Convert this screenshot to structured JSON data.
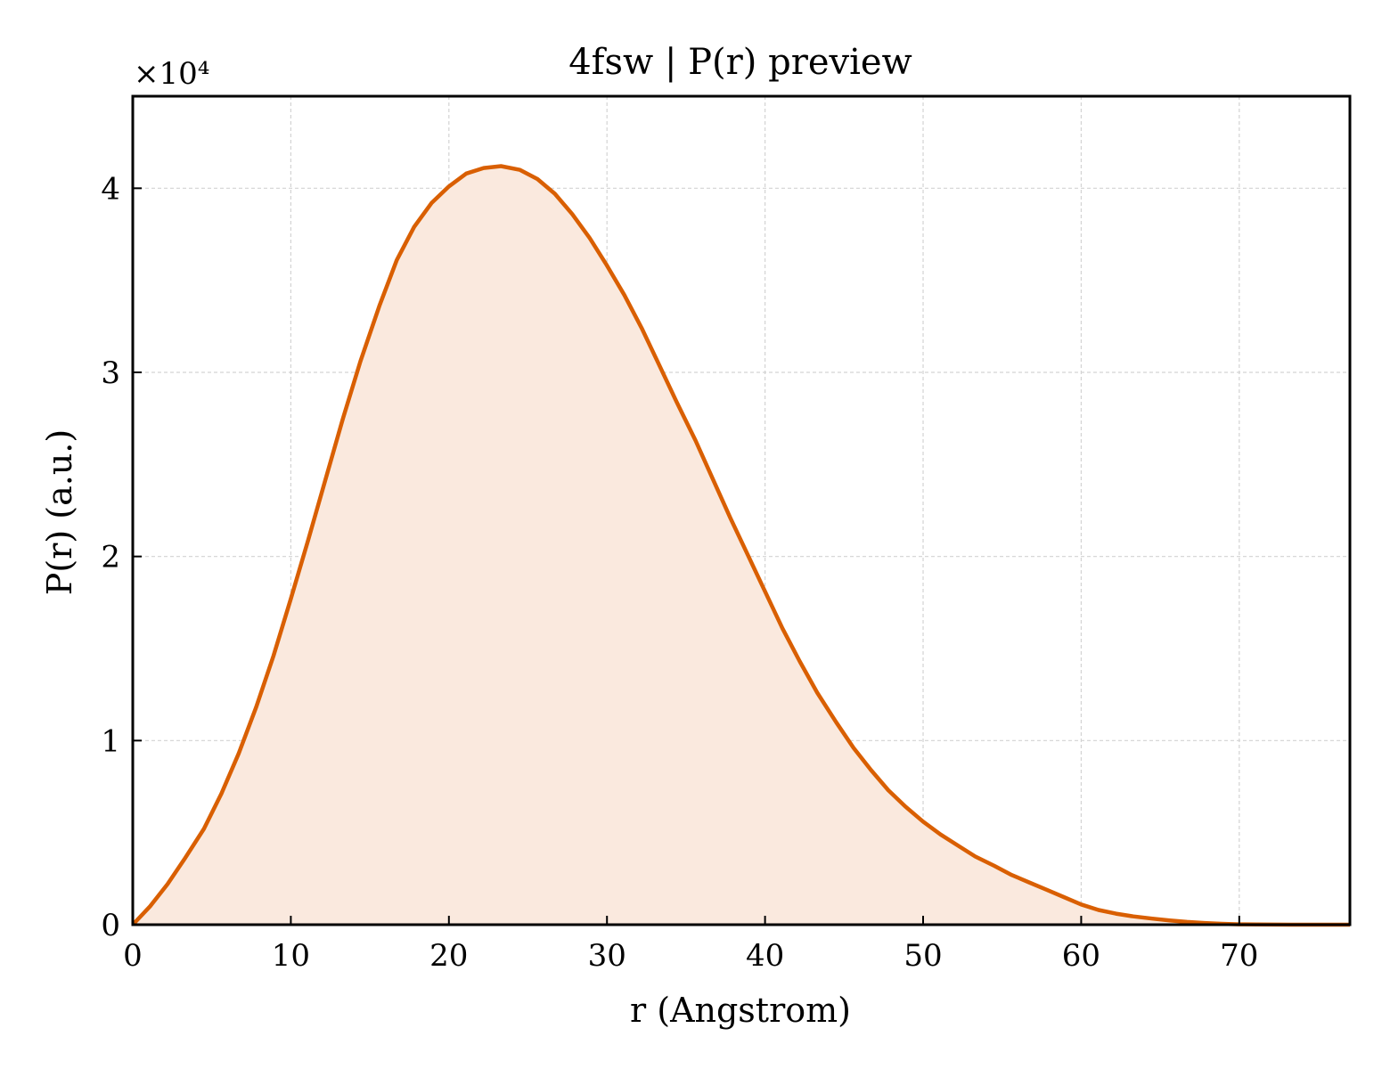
{
  "chart_data": {
    "type": "area",
    "title": "4fsw | P(r) preview",
    "xlabel": "r (Angstrom)",
    "ylabel": "P(r) (a.u.)",
    "y_multiplier_label": "×10⁴",
    "y_scale_factor": 10000,
    "xlim": [
      0,
      77
    ],
    "ylim": [
      0,
      45000
    ],
    "x_ticks": [
      0,
      10,
      20,
      30,
      40,
      50,
      60,
      70
    ],
    "y_ticks": [
      0,
      10000,
      20000,
      30000,
      40000
    ],
    "x_tick_labels": [
      "0",
      "10",
      "20",
      "30",
      "40",
      "50",
      "60",
      "70"
    ],
    "y_tick_labels": [
      "0",
      "1",
      "2",
      "3",
      "4"
    ],
    "grid": true,
    "legend": false,
    "colors": {
      "line": "#d95f02",
      "fill": "#fae9de",
      "grid": "#d3d3d3",
      "axis": "#000000"
    },
    "series": [
      {
        "x": [
          0,
          1.1,
          2.2,
          3.3,
          4.5,
          5.6,
          6.7,
          7.8,
          8.9,
          10,
          11.1,
          12.2,
          13.3,
          14.4,
          15.6,
          16.7,
          17.8,
          18.9,
          20,
          21.1,
          22.2,
          23.3,
          24.5,
          25.6,
          26.7,
          27.8,
          28.9,
          30,
          31.1,
          32.2,
          33.3,
          34.4,
          35.6,
          36.7,
          37.8,
          38.9,
          40,
          41.1,
          42.2,
          43.3,
          44.5,
          45.6,
          46.7,
          47.8,
          48.9,
          50,
          51.1,
          52.2,
          53.3,
          54.5,
          55.6,
          56.7,
          57.8,
          58.9,
          60,
          61.1,
          62.2,
          63.3,
          64.5,
          65.6,
          66.7,
          67.8,
          68.9,
          70,
          71.1,
          72.2,
          73.3,
          74.4,
          75.6,
          77
        ],
        "y": [
          0,
          1000,
          2200,
          3600,
          5200,
          7100,
          9300,
          11800,
          14600,
          17700,
          20900,
          24200,
          27500,
          30600,
          33600,
          36100,
          37900,
          39200,
          40100,
          40800,
          41100,
          41200,
          41000,
          40500,
          39700,
          38600,
          37300,
          35800,
          34200,
          32400,
          30400,
          28400,
          26300,
          24200,
          22100,
          20100,
          18100,
          16100,
          14300,
          12600,
          11000,
          9600,
          8400,
          7300,
          6400,
          5600,
          4900,
          4300,
          3700,
          3200,
          2700,
          2300,
          1900,
          1500,
          1100,
          800,
          600,
          450,
          330,
          230,
          150,
          90,
          50,
          20,
          10,
          5,
          2,
          0,
          0,
          0
        ]
      }
    ]
  }
}
